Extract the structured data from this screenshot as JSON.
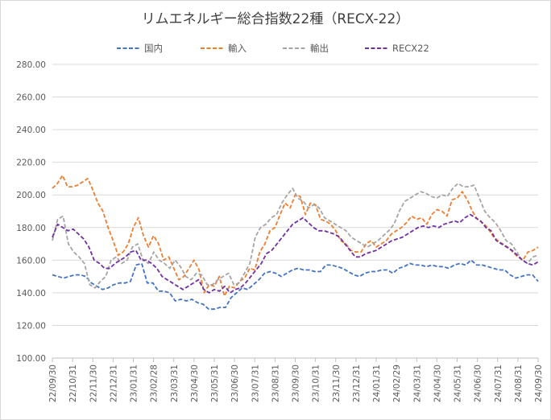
{
  "chart_data": {
    "type": "line",
    "title": "リムエネルギー総合指数22種（RECX-22）",
    "ylim": [
      100,
      280
    ],
    "y_ticks": [
      "100.00",
      "120.00",
      "140.00",
      "160.00",
      "180.00",
      "200.00",
      "220.00",
      "240.00",
      "260.00",
      "280.00"
    ],
    "y_tick_values": [
      100,
      120,
      140,
      160,
      180,
      200,
      220,
      240,
      260,
      280
    ],
    "x_ticks": [
      "22/09/30",
      "22/10/31",
      "22/11/30",
      "22/12/31",
      "23/01/31",
      "23/02/28",
      "23/03/31",
      "23/04/30",
      "23/05/31",
      "23/06/30",
      "23/07/31",
      "23/08/31",
      "23/09/30",
      "23/10/31",
      "23/11/30",
      "23/12/31",
      "24/01/31",
      "24/02/29",
      "24/03/31",
      "24/04/30",
      "24/05/31",
      "24/06/30",
      "24/07/31",
      "24/08/31",
      "24/09/30"
    ],
    "grid": true,
    "legend_position": "top",
    "series": [
      {
        "name": "国内",
        "color": "#4472C4",
        "values": [
          151,
          150,
          149,
          150,
          151,
          151,
          150,
          146,
          144,
          142,
          143,
          145,
          146,
          146,
          147,
          157,
          158,
          146,
          146,
          141,
          141,
          140,
          135,
          136,
          135,
          136,
          134,
          133,
          130,
          130,
          131,
          131,
          137,
          140,
          143,
          142,
          145,
          148,
          152,
          153,
          152,
          150,
          152,
          154,
          155,
          154,
          154,
          153,
          153,
          157,
          157,
          156,
          155,
          153,
          151,
          150,
          152,
          153,
          153,
          154,
          154,
          152,
          155,
          156,
          158,
          157,
          157,
          156,
          157,
          156,
          156,
          155,
          157,
          158,
          157,
          160,
          157,
          157,
          156,
          155,
          154,
          154,
          151,
          149,
          150,
          151,
          151,
          147
        ]
      },
      {
        "name": "輸入",
        "color": "#ED7D31",
        "values": [
          204,
          207,
          212,
          205,
          205,
          206,
          208,
          210,
          203,
          195,
          190,
          180,
          172,
          163,
          165,
          170,
          180,
          186,
          175,
          168,
          175,
          170,
          160,
          162,
          155,
          148,
          150,
          155,
          160,
          154,
          140,
          145,
          144,
          150,
          138,
          144,
          143,
          147,
          149,
          155,
          154,
          165,
          170,
          178,
          180,
          188,
          195,
          192,
          200,
          199,
          188,
          195,
          194,
          185,
          184,
          182,
          178,
          172,
          170,
          166,
          165,
          165,
          170,
          172,
          168,
          170,
          172,
          176,
          178,
          180,
          183,
          187,
          185,
          186,
          182,
          188,
          191,
          190,
          187,
          197,
          198,
          202,
          197,
          190,
          185,
          183,
          180,
          175,
          172,
          170,
          168,
          165,
          162,
          160,
          165,
          166,
          168
        ]
      },
      {
        "name": "輸出",
        "color": "#A5A5A5",
        "values": [
          172,
          185,
          187,
          170,
          165,
          162,
          158,
          145,
          143,
          147,
          150,
          160,
          162,
          158,
          160,
          168,
          170,
          160,
          158,
          165,
          160,
          158,
          155,
          160,
          156,
          150,
          148,
          152,
          151,
          145,
          145,
          148,
          150,
          152,
          145,
          146,
          152,
          158,
          174,
          180,
          182,
          186,
          188,
          195,
          200,
          204,
          198,
          196,
          192,
          194,
          192,
          186,
          184,
          182,
          180,
          178,
          174,
          172,
          170,
          168,
          170,
          172,
          175,
          178,
          182,
          190,
          196,
          198,
          200,
          202,
          201,
          199,
          198,
          200,
          199,
          204,
          207,
          205,
          205,
          206,
          198,
          190,
          186,
          183,
          178,
          172,
          170,
          165,
          160,
          158,
          162,
          163
        ]
      },
      {
        "name": "RECX22",
        "color": "#7030A0",
        "values": [
          174,
          182,
          180,
          178,
          179,
          176,
          173,
          168,
          160,
          158,
          155,
          155,
          158,
          160,
          162,
          165,
          166,
          160,
          160,
          158,
          155,
          150,
          148,
          146,
          144,
          142,
          144,
          146,
          148,
          142,
          140,
          142,
          141,
          144,
          140,
          142,
          143,
          146,
          150,
          154,
          158,
          164,
          166,
          170,
          174,
          178,
          182,
          184,
          186,
          183,
          180,
          178,
          178,
          177,
          176,
          174,
          170,
          166,
          162,
          162,
          164,
          165,
          166,
          168,
          170,
          172,
          173,
          174,
          176,
          178,
          180,
          181,
          180,
          181,
          180,
          182,
          183,
          184,
          183,
          186,
          188,
          186,
          184,
          180,
          178,
          172,
          170,
          168,
          166,
          163,
          160,
          158,
          157,
          159
        ]
      }
    ]
  }
}
